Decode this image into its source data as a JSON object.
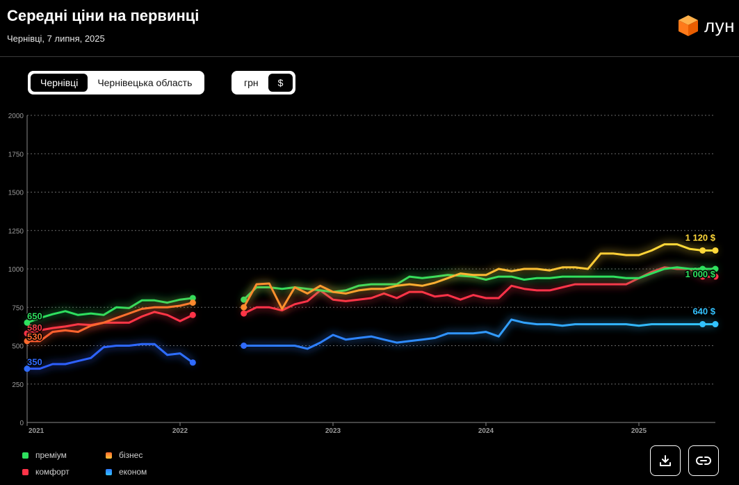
{
  "header": {
    "title": "Середні ціни на первинці",
    "subtitle": "Чернівці, 7 липня, 2025",
    "logo_text": "лун",
    "logo_icon": "orange-cube-icon"
  },
  "region_toggle": {
    "options": [
      "Чернівці",
      "Чернівецька область"
    ],
    "selected": "Чернівці"
  },
  "currency_toggle": {
    "options": [
      "грн",
      "$"
    ],
    "selected": "$"
  },
  "colors": {
    "background": "#000000",
    "premium": "#2ee05e",
    "business": "#ff9a2e",
    "comfort": "#ff3348",
    "economy": "#2f7bff",
    "business_recent": "#ffd83a",
    "economy_recent": "#33c2ff",
    "grid": "#6a6a6a"
  },
  "legend": [
    {
      "label": "преміум",
      "color": "#2ee05e"
    },
    {
      "label": "бізнес",
      "color": "#ff9a2e"
    },
    {
      "label": "комфорт",
      "color": "#ff3348"
    },
    {
      "label": "економ",
      "color": "#2f7bff"
    }
  ],
  "actions": {
    "download_icon": "download-icon",
    "link_icon": "link-icon"
  },
  "chart_data": {
    "type": "line",
    "ylim": [
      0,
      2000
    ],
    "yticks": [
      0,
      250,
      500,
      750,
      1000,
      1250,
      1500,
      1750,
      2000
    ],
    "ytick_labels": [
      "0",
      "250",
      "500",
      "750",
      "1000",
      "1250",
      "1500",
      "1750",
      "2000"
    ],
    "xlim": [
      "2021-01",
      "2025-07"
    ],
    "xticks": [
      "2021-01",
      "2022-01",
      "2023-01",
      "2024-01",
      "2025-01"
    ],
    "xtick_labels": [
      "2021",
      "2022",
      "2023",
      "2024",
      "2025"
    ],
    "grid": true,
    "series": [
      {
        "name": "преміум",
        "color": "#2ee05e",
        "start_label": "650",
        "end_label": "1 000 $",
        "segments": [
          [
            [
              "2021-01",
              650
            ],
            [
              "2021-02",
              680
            ],
            [
              "2021-03",
              705
            ],
            [
              "2021-04",
              725
            ],
            [
              "2021-05",
              700
            ],
            [
              "2021-06",
              710
            ],
            [
              "2021-07",
              700
            ],
            [
              "2021-08",
              750
            ],
            [
              "2021-09",
              745
            ],
            [
              "2021-10",
              795
            ],
            [
              "2021-11",
              795
            ],
            [
              "2021-12",
              780
            ],
            [
              "2022-01",
              800
            ],
            [
              "2022-02",
              810
            ]
          ],
          [
            [
              "2022-06",
              800
            ],
            [
              "2022-07",
              880
            ],
            [
              "2022-08",
              880
            ],
            [
              "2022-09",
              870
            ],
            [
              "2022-10",
              880
            ],
            [
              "2022-11",
              870
            ],
            [
              "2022-12",
              860
            ],
            [
              "2023-01",
              850
            ],
            [
              "2023-02",
              860
            ],
            [
              "2023-03",
              890
            ],
            [
              "2023-04",
              900
            ],
            [
              "2023-05",
              900
            ],
            [
              "2023-06",
              900
            ],
            [
              "2023-07",
              950
            ],
            [
              "2023-08",
              940
            ],
            [
              "2023-09",
              950
            ],
            [
              "2023-10",
              960
            ],
            [
              "2023-11",
              955
            ],
            [
              "2023-12",
              950
            ],
            [
              "2024-01",
              930
            ],
            [
              "2024-02",
              950
            ],
            [
              "2024-03",
              950
            ],
            [
              "2024-04",
              930
            ],
            [
              "2024-05",
              940
            ],
            [
              "2024-06",
              940
            ],
            [
              "2024-07",
              950
            ],
            [
              "2024-08",
              950
            ],
            [
              "2024-09",
              950
            ],
            [
              "2024-10",
              950
            ],
            [
              "2024-11",
              950
            ],
            [
              "2024-12",
              940
            ],
            [
              "2025-01",
              940
            ],
            [
              "2025-02",
              970
            ],
            [
              "2025-03",
              1000
            ],
            [
              "2025-04",
              1010
            ],
            [
              "2025-05",
              1000
            ],
            [
              "2025-06",
              1000
            ],
            [
              "2025-07",
              1000
            ]
          ]
        ]
      },
      {
        "name": "бізнес",
        "color": "#ff9a2e",
        "start_label": "530",
        "end_label": "1 120 $",
        "segments": [
          [
            [
              "2021-01",
              530
            ],
            [
              "2021-02",
              530
            ],
            [
              "2021-03",
              590
            ],
            [
              "2021-04",
              600
            ],
            [
              "2021-05",
              590
            ],
            [
              "2021-06",
              630
            ],
            [
              "2021-07",
              650
            ],
            [
              "2021-08",
              680
            ],
            [
              "2021-09",
              710
            ],
            [
              "2021-10",
              740
            ],
            [
              "2021-11",
              750
            ],
            [
              "2021-12",
              750
            ],
            [
              "2022-01",
              760
            ],
            [
              "2022-02",
              780
            ]
          ],
          [
            [
              "2022-06",
              750
            ],
            [
              "2022-07",
              900
            ],
            [
              "2022-08",
              905
            ],
            [
              "2022-09",
              740
            ],
            [
              "2022-10",
              880
            ],
            [
              "2022-11",
              840
            ],
            [
              "2022-12",
              890
            ],
            [
              "2023-01",
              850
            ],
            [
              "2023-02",
              840
            ],
            [
              "2023-03",
              860
            ],
            [
              "2023-04",
              870
            ],
            [
              "2023-05",
              870
            ],
            [
              "2023-06",
              890
            ],
            [
              "2023-07",
              900
            ],
            [
              "2023-08",
              890
            ],
            [
              "2023-09",
              910
            ],
            [
              "2023-10",
              940
            ],
            [
              "2023-11",
              970
            ],
            [
              "2023-12",
              960
            ],
            [
              "2024-01",
              960
            ],
            [
              "2024-02",
              1000
            ],
            [
              "2024-03",
              985
            ],
            [
              "2024-04",
              1000
            ],
            [
              "2024-05",
              1000
            ],
            [
              "2024-06",
              990
            ],
            [
              "2024-07",
              1010
            ],
            [
              "2024-08",
              1010
            ],
            [
              "2024-09",
              1000
            ],
            [
              "2024-10",
              1100
            ],
            [
              "2024-11",
              1100
            ],
            [
              "2024-12",
              1090
            ],
            [
              "2025-01",
              1090
            ],
            [
              "2025-02",
              1120
            ],
            [
              "2025-03",
              1160
            ],
            [
              "2025-04",
              1160
            ],
            [
              "2025-05",
              1130
            ],
            [
              "2025-06",
              1120
            ],
            [
              "2025-07",
              1120
            ]
          ]
        ]
      },
      {
        "name": "комфорт",
        "color": "#ff3348",
        "start_label": "580",
        "end_label": "950 $",
        "segments": [
          [
            [
              "2021-01",
              580
            ],
            [
              "2021-02",
              600
            ],
            [
              "2021-03",
              615
            ],
            [
              "2021-04",
              625
            ],
            [
              "2021-05",
              640
            ],
            [
              "2021-06",
              635
            ],
            [
              "2021-07",
              650
            ],
            [
              "2021-08",
              650
            ],
            [
              "2021-09",
              650
            ],
            [
              "2021-10",
              690
            ],
            [
              "2021-11",
              720
            ],
            [
              "2021-12",
              700
            ],
            [
              "2022-01",
              660
            ],
            [
              "2022-02",
              700
            ]
          ],
          [
            [
              "2022-06",
              710
            ],
            [
              "2022-07",
              750
            ],
            [
              "2022-08",
              750
            ],
            [
              "2022-09",
              730
            ],
            [
              "2022-10",
              770
            ],
            [
              "2022-11",
              790
            ],
            [
              "2022-12",
              860
            ],
            [
              "2023-01",
              800
            ],
            [
              "2023-02",
              790
            ],
            [
              "2023-03",
              800
            ],
            [
              "2023-04",
              810
            ],
            [
              "2023-05",
              840
            ],
            [
              "2023-06",
              810
            ],
            [
              "2023-07",
              850
            ],
            [
              "2023-08",
              850
            ],
            [
              "2023-09",
              820
            ],
            [
              "2023-10",
              830
            ],
            [
              "2023-11",
              800
            ],
            [
              "2023-12",
              830
            ],
            [
              "2024-01",
              810
            ],
            [
              "2024-02",
              810
            ],
            [
              "2024-03",
              890
            ],
            [
              "2024-04",
              870
            ],
            [
              "2024-05",
              860
            ],
            [
              "2024-06",
              860
            ],
            [
              "2024-07",
              880
            ],
            [
              "2024-08",
              900
            ],
            [
              "2024-09",
              900
            ],
            [
              "2024-10",
              900
            ],
            [
              "2024-11",
              900
            ],
            [
              "2024-12",
              900
            ],
            [
              "2025-01",
              940
            ],
            [
              "2025-02",
              980
            ],
            [
              "2025-03",
              1010
            ],
            [
              "2025-04",
              1000
            ],
            [
              "2025-05",
              1000
            ],
            [
              "2025-06",
              950
            ],
            [
              "2025-07",
              950
            ]
          ]
        ]
      },
      {
        "name": "економ",
        "color": "#2f7bff",
        "start_label": "350",
        "end_label": "640 $",
        "segments": [
          [
            [
              "2021-01",
              350
            ],
            [
              "2021-02",
              350
            ],
            [
              "2021-03",
              380
            ],
            [
              "2021-04",
              380
            ],
            [
              "2021-05",
              400
            ],
            [
              "2021-06",
              420
            ],
            [
              "2021-07",
              490
            ],
            [
              "2021-08",
              500
            ],
            [
              "2021-09",
              500
            ],
            [
              "2021-10",
              510
            ],
            [
              "2021-11",
              510
            ],
            [
              "2021-12",
              440
            ],
            [
              "2022-01",
              450
            ],
            [
              "2022-02",
              390
            ]
          ],
          [
            [
              "2022-06",
              500
            ],
            [
              "2022-07",
              500
            ],
            [
              "2022-08",
              500
            ],
            [
              "2022-09",
              500
            ],
            [
              "2022-10",
              500
            ],
            [
              "2022-11",
              480
            ],
            [
              "2022-12",
              520
            ],
            [
              "2023-01",
              570
            ],
            [
              "2023-02",
              540
            ],
            [
              "2023-03",
              550
            ],
            [
              "2023-04",
              560
            ],
            [
              "2023-05",
              540
            ],
            [
              "2023-06",
              520
            ],
            [
              "2023-07",
              530
            ],
            [
              "2023-08",
              540
            ],
            [
              "2023-09",
              550
            ],
            [
              "2023-10",
              580
            ],
            [
              "2023-11",
              580
            ],
            [
              "2023-12",
              580
            ],
            [
              "2024-01",
              590
            ],
            [
              "2024-02",
              560
            ],
            [
              "2024-03",
              670
            ],
            [
              "2024-04",
              650
            ],
            [
              "2024-05",
              640
            ],
            [
              "2024-06",
              640
            ],
            [
              "2024-07",
              630
            ],
            [
              "2024-08",
              640
            ],
            [
              "2024-09",
              640
            ],
            [
              "2024-10",
              640
            ],
            [
              "2024-11",
              640
            ],
            [
              "2024-12",
              640
            ],
            [
              "2025-01",
              630
            ],
            [
              "2025-02",
              640
            ],
            [
              "2025-03",
              640
            ],
            [
              "2025-04",
              640
            ],
            [
              "2025-05",
              640
            ],
            [
              "2025-06",
              640
            ],
            [
              "2025-07",
              640
            ]
          ]
        ]
      }
    ]
  }
}
